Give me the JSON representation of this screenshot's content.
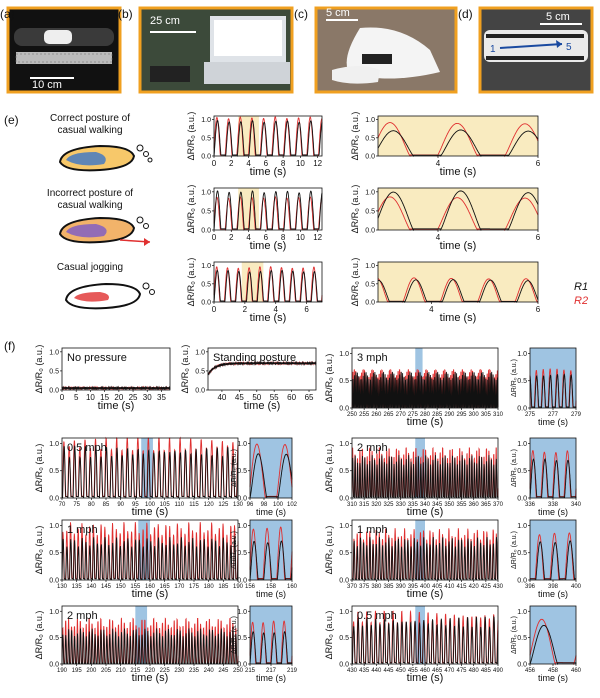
{
  "figure": {
    "labels": [
      "(a)",
      "(b)",
      "(c)",
      "(d)",
      "(e)",
      "(f)"
    ],
    "scalebars": [
      "10 cm",
      "25 cm",
      "5 cm",
      "5 cm"
    ],
    "insole_markers": [
      "1",
      "5"
    ]
  },
  "colors": {
    "r1": "#111111",
    "r2": "#e03030",
    "highlight_yellow": "#f9ebc0",
    "highlight_blue": "#9fc4e2",
    "photo_border": "#f0a020"
  },
  "e_rows": [
    {
      "label_line1": "Correct posture of",
      "label_line2": "casual walking"
    },
    {
      "label_line1": "Incorrect posture of",
      "label_line2": "casual walking"
    },
    {
      "label_line1": "Casual jogging",
      "label_line2": ""
    }
  ],
  "legend": {
    "r1": "R1",
    "r2": "R2"
  },
  "axis_text": {
    "ylabel": "ΔR/R₀ (a.u.)",
    "xlabel": "time (s)"
  },
  "chart_data": [
    {
      "panel": "e-walk-correct",
      "type": "line",
      "xlim": [
        0,
        12.5
      ],
      "xticks": [
        0,
        2,
        4,
        6,
        8,
        10,
        12
      ],
      "ylim": [
        0,
        1.1
      ],
      "yticks": [
        0,
        0.5,
        1.0
      ],
      "period": 1.35,
      "amp_r1": 0.95,
      "amp_r2": 1.05,
      "highlight": [
        2.8,
        5.2
      ]
    },
    {
      "panel": "e-walk-correct-zoom",
      "type": "line",
      "xlim": [
        2.8,
        6
      ],
      "xticks": [
        4,
        6
      ],
      "ylim": [
        0,
        1.1
      ],
      "yticks": [
        0,
        0.5,
        1.0
      ],
      "period": 1.35,
      "amp_r1": 0.7,
      "amp_r2": 0.9
    },
    {
      "panel": "e-walk-incorrect",
      "type": "line",
      "xlim": [
        0,
        12.5
      ],
      "xticks": [
        0,
        2,
        4,
        6,
        8,
        10,
        12
      ],
      "ylim": [
        0,
        1.1
      ],
      "yticks": [
        0,
        0.5,
        1.0
      ],
      "period": 1.35,
      "amp_r1": 1.0,
      "amp_r2": 0.85,
      "highlight": [
        2.8,
        5.2
      ]
    },
    {
      "panel": "e-walk-incorrect-zoom",
      "type": "line",
      "xlim": [
        2.8,
        6
      ],
      "xticks": [
        4,
        6
      ],
      "ylim": [
        0,
        1.1
      ],
      "yticks": [
        0,
        0.5,
        1.0
      ],
      "period": 1.35,
      "amp_r1": 1.0,
      "amp_r2": 0.85
    },
    {
      "panel": "e-jog",
      "type": "line",
      "xlim": [
        0,
        7
      ],
      "xticks": [
        0,
        2,
        4,
        6
      ],
      "ylim": [
        0,
        1.1
      ],
      "yticks": [
        0,
        0.5,
        1.0
      ],
      "period": 0.7,
      "amp_r1": 0.85,
      "amp_r2": 0.95,
      "highlight": [
        1.8,
        3.2
      ]
    },
    {
      "panel": "e-jog-zoom",
      "type": "line",
      "xlim": [
        3,
        6
      ],
      "xticks": [
        4,
        6
      ],
      "ylim": [
        0,
        1.1
      ],
      "yticks": [
        0,
        0.5,
        1.0
      ],
      "period": 0.7,
      "amp_r1": 0.6,
      "amp_r2": 0.65
    },
    {
      "panel": "f-no-pressure",
      "title": "No pressure",
      "type": "line",
      "xlim": [
        0,
        38
      ],
      "xticks": [
        0,
        5,
        10,
        15,
        20,
        25,
        30,
        35
      ],
      "ylim": [
        0,
        1.1
      ],
      "yticks": [
        0,
        0.5,
        1.0
      ],
      "level": 0.05
    },
    {
      "panel": "f-standing",
      "title": "Standing posture",
      "type": "line",
      "xlim": [
        36,
        67
      ],
      "xticks": [
        40,
        45,
        50,
        55,
        60,
        65
      ],
      "ylim": [
        0,
        1.1
      ],
      "yticks": [
        0,
        0.5,
        1.0
      ],
      "level": 0.7
    },
    {
      "panel": "f-3mph",
      "title": "3 mph",
      "type": "line",
      "xlim": [
        250,
        310
      ],
      "xticks": [
        250,
        255,
        260,
        265,
        270,
        275,
        280,
        285,
        290,
        295,
        300,
        305,
        310
      ],
      "ylim": [
        0,
        1.1
      ],
      "yticks": [
        0,
        0.5,
        1.0
      ],
      "period": 0.6,
      "amp_r1": 0.6,
      "amp_r2": 0.7,
      "highlight": [
        276,
        279
      ]
    },
    {
      "panel": "f-3mph-zoom",
      "type": "line",
      "xlim": [
        275,
        279
      ],
      "xticks": [
        275,
        277,
        279
      ],
      "ylim": [
        0,
        1.1
      ],
      "yticks": [
        0,
        0.5,
        1.0
      ],
      "period": 0.6,
      "amp_r1": 0.6,
      "amp_r2": 0.7
    },
    {
      "panel": "f-0.5mph-a",
      "title": "0.5 mph",
      "type": "line",
      "xlim": [
        70,
        130
      ],
      "xticks": [
        70,
        75,
        80,
        85,
        90,
        95,
        100,
        105,
        110,
        115,
        120,
        125,
        130
      ],
      "ylim": [
        0,
        1.1
      ],
      "yticks": [
        0,
        0.5,
        1.0
      ],
      "period": 1.8,
      "amp_r1": 0.85,
      "amp_r2": 1.0,
      "highlight": [
        97,
        101
      ]
    },
    {
      "panel": "f-0.5mph-a-zoom",
      "type": "line",
      "xlim": [
        96,
        102
      ],
      "xticks": [
        96,
        98,
        100,
        102
      ],
      "ylim": [
        0,
        1.1
      ],
      "yticks": [
        0,
        0.5,
        1.0
      ],
      "period": 4.0,
      "amp_r1": 0.8,
      "amp_r2": 1.0
    },
    {
      "panel": "f-2mph-a",
      "title": "2 mph",
      "type": "line",
      "xlim": [
        310,
        370
      ],
      "xticks": [
        310,
        315,
        320,
        325,
        330,
        335,
        340,
        345,
        350,
        355,
        360,
        365,
        370
      ],
      "ylim": [
        0,
        1.1
      ],
      "yticks": [
        0,
        0.5,
        1.0
      ],
      "period": 1.0,
      "amp_r1": 0.7,
      "amp_r2": 0.85,
      "highlight": [
        336,
        340
      ]
    },
    {
      "panel": "f-2mph-a-zoom",
      "type": "line",
      "xlim": [
        336,
        340
      ],
      "xticks": [
        336,
        338,
        340
      ],
      "ylim": [
        0,
        1.1
      ],
      "yticks": [
        0,
        0.5,
        1.0
      ],
      "period": 1.0,
      "amp_r1": 0.7,
      "amp_r2": 0.85
    },
    {
      "panel": "f-1mph-a",
      "title": "1 mph",
      "type": "line",
      "xlim": [
        130,
        190
      ],
      "xticks": [
        130,
        135,
        140,
        145,
        150,
        155,
        160,
        165,
        170,
        175,
        180,
        185,
        190
      ],
      "ylim": [
        0,
        1.1
      ],
      "yticks": [
        0,
        0.5,
        1.0
      ],
      "period": 1.3,
      "amp_r1": 0.7,
      "amp_r2": 0.95,
      "highlight": [
        156,
        160
      ]
    },
    {
      "panel": "f-1mph-a-zoom",
      "type": "line",
      "xlim": [
        156,
        160
      ],
      "xticks": [
        156,
        158,
        160
      ],
      "ylim": [
        0,
        1.1
      ],
      "yticks": [
        0,
        0.5,
        1.0
      ],
      "period": 1.3,
      "amp_r1": 0.7,
      "amp_r2": 0.95
    },
    {
      "panel": "f-1mph-b",
      "title": "1 mph",
      "type": "line",
      "xlim": [
        370,
        430
      ],
      "xticks": [
        370,
        375,
        380,
        385,
        390,
        395,
        400,
        405,
        410,
        415,
        420,
        425,
        430
      ],
      "ylim": [
        0,
        1.1
      ],
      "yticks": [
        0,
        0.5,
        1.0
      ],
      "period": 1.3,
      "amp_r1": 0.7,
      "amp_r2": 0.85,
      "highlight": [
        396,
        400
      ]
    },
    {
      "panel": "f-1mph-b-zoom",
      "type": "line",
      "xlim": [
        396,
        400
      ],
      "xticks": [
        396,
        398,
        400
      ],
      "ylim": [
        0,
        1.1
      ],
      "yticks": [
        0,
        0.5,
        1.0
      ],
      "period": 1.3,
      "amp_r1": 0.7,
      "amp_r2": 0.85
    },
    {
      "panel": "f-2mph-b",
      "title": "2 mph",
      "type": "line",
      "xlim": [
        190,
        250
      ],
      "xticks": [
        190,
        195,
        200,
        205,
        210,
        215,
        220,
        225,
        230,
        235,
        240,
        245,
        250
      ],
      "ylim": [
        0,
        1.1
      ],
      "yticks": [
        0,
        0.5,
        1.0
      ],
      "period": 1.0,
      "amp_r1": 0.6,
      "amp_r2": 0.8,
      "highlight": [
        215,
        219
      ]
    },
    {
      "panel": "f-2mph-b-zoom",
      "type": "line",
      "xlim": [
        215,
        219
      ],
      "xticks": [
        215,
        217,
        219
      ],
      "ylim": [
        0,
        1.1
      ],
      "yticks": [
        0,
        0.5,
        1.0
      ],
      "period": 1.0,
      "amp_r1": 0.6,
      "amp_r2": 0.8
    },
    {
      "panel": "f-0.5mph-b",
      "title": "0.5 mph",
      "type": "line",
      "xlim": [
        430,
        490
      ],
      "xticks": [
        430,
        435,
        440,
        445,
        450,
        455,
        460,
        465,
        470,
        475,
        480,
        485,
        490
      ],
      "ylim": [
        0,
        1.1
      ],
      "yticks": [
        0,
        0.5,
        1.0
      ],
      "period": 1.8,
      "amp_r1": 0.8,
      "amp_r2": 0.9,
      "highlight": [
        456,
        460
      ]
    },
    {
      "panel": "f-0.5mph-b-zoom",
      "type": "line",
      "xlim": [
        456,
        460
      ],
      "xticks": [
        456,
        458,
        460
      ],
      "ylim": [
        0,
        1.1
      ],
      "yticks": [
        0,
        0.5,
        1.0
      ],
      "period": 4.0,
      "amp_r1": 0.75,
      "amp_r2": 0.85
    }
  ]
}
